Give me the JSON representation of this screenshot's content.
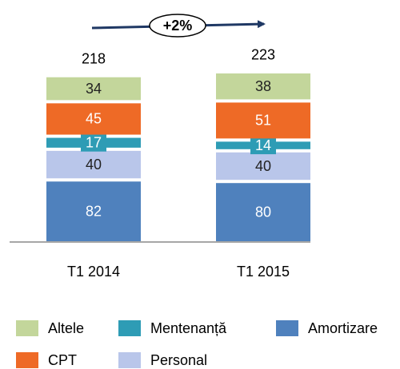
{
  "chart_data": {
    "type": "stacked_bar",
    "categories": [
      "T1 2014",
      "T1 2015"
    ],
    "series": [
      {
        "name": "Amortizare",
        "color": "#4f81bd",
        "values": [
          82,
          80
        ]
      },
      {
        "name": "Personal",
        "color": "#b9c6ea",
        "values": [
          40,
          40
        ]
      },
      {
        "name": "Mentenanță",
        "color": "#2e9cb5",
        "values": [
          17,
          14
        ]
      },
      {
        "name": "CPT",
        "color": "#ee6a26",
        "values": [
          45,
          51
        ]
      },
      {
        "name": "Altele",
        "color": "#c3d69b",
        "values": [
          34,
          38
        ]
      }
    ],
    "totals": [
      218,
      223
    ],
    "annotation": "+2%"
  }
}
